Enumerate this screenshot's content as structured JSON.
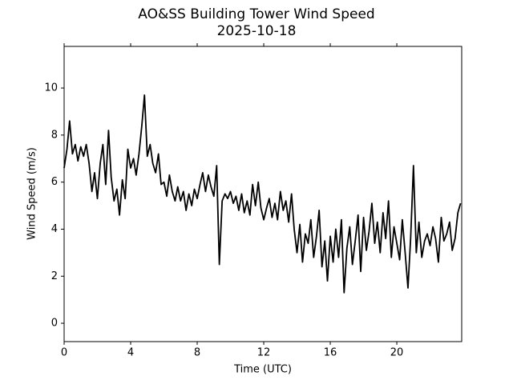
{
  "chart_data": {
    "type": "line",
    "title": "AO&SS Building Tower Wind Speed",
    "subtitle": "2025-10-18",
    "x_label": "Time (UTC)",
    "y_label": "Wind Speed (m/s)",
    "color": "#000000",
    "xlim": [
      0,
      23.9
    ],
    "ylim": [
      -0.78,
      11.77
    ],
    "xticks": [
      0,
      4,
      8,
      12,
      16,
      20
    ],
    "yticks": [
      0,
      2,
      4,
      6,
      8,
      10
    ],
    "grid": false,
    "x": [
      0,
      0.17,
      0.33,
      0.5,
      0.67,
      0.83,
      1,
      1.17,
      1.33,
      1.5,
      1.67,
      1.83,
      2,
      2.17,
      2.33,
      2.5,
      2.67,
      2.83,
      3,
      3.17,
      3.33,
      3.5,
      3.67,
      3.83,
      4,
      4.17,
      4.33,
      4.5,
      4.67,
      4.83,
      5,
      5.17,
      5.33,
      5.5,
      5.67,
      5.83,
      6,
      6.17,
      6.33,
      6.5,
      6.67,
      6.83,
      7,
      7.17,
      7.33,
      7.5,
      7.67,
      7.83,
      8,
      8.17,
      8.33,
      8.5,
      8.67,
      8.83,
      9,
      9.17,
      9.33,
      9.5,
      9.67,
      9.83,
      10,
      10.17,
      10.33,
      10.5,
      10.67,
      10.83,
      11,
      11.17,
      11.33,
      11.5,
      11.67,
      11.83,
      12,
      12.17,
      12.33,
      12.5,
      12.67,
      12.83,
      13,
      13.17,
      13.33,
      13.5,
      13.67,
      13.83,
      14,
      14.17,
      14.33,
      14.5,
      14.67,
      14.83,
      15,
      15.17,
      15.33,
      15.5,
      15.67,
      15.83,
      16,
      16.17,
      16.33,
      16.5,
      16.67,
      16.83,
      17,
      17.17,
      17.33,
      17.5,
      17.67,
      17.83,
      18,
      18.17,
      18.33,
      18.5,
      18.67,
      18.83,
      19,
      19.17,
      19.33,
      19.5,
      19.67,
      19.83,
      20,
      20.17,
      20.33,
      20.5,
      20.67,
      20.83,
      21,
      21.17,
      21.33,
      21.5,
      21.67,
      21.83,
      22,
      22.17,
      22.33,
      22.5,
      22.67,
      22.83,
      23,
      23.17,
      23.33,
      23.5,
      23.67,
      23.83
    ],
    "values": [
      6.6,
      7.4,
      8.6,
      7.2,
      7.6,
      6.9,
      7.5,
      7.1,
      7.6,
      6.8,
      5.6,
      6.4,
      5.3,
      6.8,
      7.6,
      5.9,
      8.2,
      6.2,
      5.2,
      5.7,
      4.6,
      6.1,
      5.3,
      7.4,
      6.6,
      7.0,
      6.3,
      7.2,
      8.4,
      9.7,
      7.1,
      7.6,
      6.8,
      6.4,
      7.2,
      5.9,
      6.0,
      5.4,
      6.3,
      5.6,
      5.2,
      5.8,
      5.2,
      5.6,
      4.8,
      5.5,
      5.0,
      5.7,
      5.3,
      5.9,
      6.4,
      5.6,
      6.3,
      5.8,
      5.4,
      6.7,
      2.5,
      5.2,
      5.5,
      5.3,
      5.6,
      5.1,
      5.4,
      4.8,
      5.5,
      4.7,
      5.2,
      4.6,
      5.9,
      5.0,
      6.0,
      4.9,
      4.4,
      4.9,
      5.3,
      4.5,
      5.1,
      4.4,
      5.6,
      4.8,
      5.2,
      4.3,
      5.5,
      4.0,
      3.0,
      4.2,
      2.6,
      3.8,
      3.4,
      4.4,
      2.8,
      3.7,
      4.8,
      2.4,
      3.5,
      1.8,
      3.7,
      2.6,
      4.0,
      2.8,
      4.4,
      1.3,
      3.2,
      4.1,
      2.5,
      3.5,
      4.6,
      2.2,
      4.5,
      3.1,
      3.9,
      5.1,
      3.4,
      4.3,
      3.0,
      4.7,
      3.6,
      5.2,
      2.8,
      4.1,
      3.4,
      2.7,
      4.4,
      3.0,
      1.5,
      3.6,
      6.7,
      3.0,
      4.3,
      2.8,
      3.5,
      3.8,
      3.3,
      4.1,
      3.6,
      2.6,
      4.5,
      3.5,
      3.8,
      4.3,
      3.1,
      3.6,
      4.7,
      5.1
    ]
  }
}
